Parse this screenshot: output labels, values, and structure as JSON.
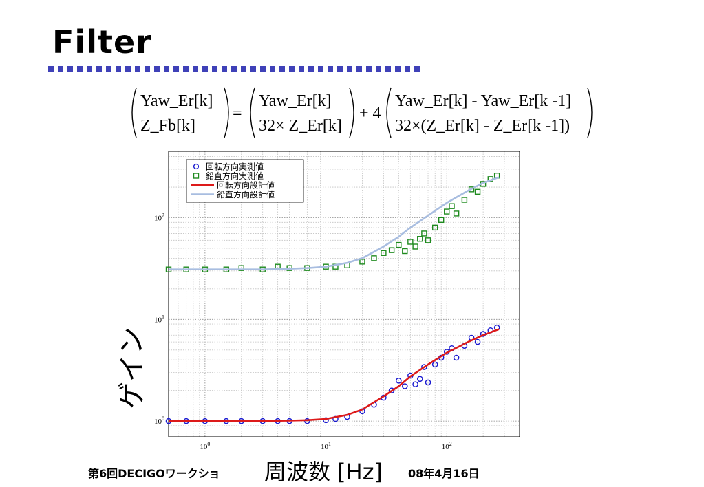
{
  "slide": {
    "title": "Filter",
    "equation": {
      "lhs": [
        "Yaw_Er[k]",
        "Z_Fb[k]"
      ],
      "op_equals": "=",
      "term1": [
        "Yaw_Er[k]",
        "32× Z_Er[k]"
      ],
      "op_plus": "+ 4",
      "term2": [
        "Yaw_Er[k]  - Yaw_Er[k  -1]",
        "32×(Z_Er[k] - Z_Er[k -1])"
      ]
    },
    "footer_left": "第6回DECIGOワークショ",
    "footer_right": "08年4月16日"
  },
  "chart_data": {
    "type": "scatter",
    "title": "",
    "xlabel": "周波数 [Hz]",
    "ylabel": "ゲイン",
    "x_scale": "log",
    "y_scale": "log",
    "xlim": [
      0.5,
      400
    ],
    "ylim": [
      0.7,
      450
    ],
    "grid": true,
    "legend_position": "top-left",
    "x_ticks": [
      {
        "base": "10",
        "exp": "0",
        "value": 1
      },
      {
        "base": "10",
        "exp": "1",
        "value": 10
      },
      {
        "base": "10",
        "exp": "2",
        "value": 100
      }
    ],
    "y_ticks": [
      {
        "base": "10",
        "exp": "0",
        "value": 1
      },
      {
        "base": "10",
        "exp": "1",
        "value": 10
      },
      {
        "base": "10",
        "exp": "2",
        "value": 100
      }
    ],
    "series": [
      {
        "name": "回転方向実測値",
        "kind": "measured",
        "marker": "circle",
        "color": "#1a1ad0",
        "x": [
          0.5,
          0.7,
          1,
          1.5,
          2,
          3,
          4,
          5,
          7,
          10,
          12,
          15,
          20,
          25,
          30,
          35,
          40,
          45,
          50,
          55,
          60,
          65,
          70,
          80,
          90,
          100,
          110,
          120,
          140,
          160,
          180,
          200,
          230,
          260
        ],
        "y": [
          1,
          1,
          1,
          1,
          1,
          1,
          1,
          1,
          1,
          1.02,
          1.05,
          1.1,
          1.25,
          1.45,
          1.7,
          2.0,
          2.5,
          2.2,
          2.8,
          2.3,
          2.6,
          3.4,
          2.4,
          3.6,
          4.2,
          4.8,
          5.2,
          4.2,
          5.5,
          6.6,
          6.0,
          7.2,
          7.8,
          8.3
        ]
      },
      {
        "name": "鉛直方向実測値",
        "kind": "measured",
        "marker": "square",
        "color": "#1e8a1e",
        "x": [
          0.5,
          0.7,
          1,
          1.5,
          2,
          3,
          4,
          5,
          7,
          10,
          12,
          15,
          20,
          25,
          30,
          35,
          40,
          45,
          50,
          55,
          60,
          65,
          70,
          80,
          90,
          100,
          110,
          120,
          140,
          160,
          180,
          200,
          230,
          260
        ],
        "y": [
          31,
          31,
          31,
          31,
          32,
          31,
          33,
          32,
          32,
          33,
          33,
          34,
          37,
          40,
          45,
          48,
          54,
          47,
          58,
          52,
          62,
          70,
          60,
          80,
          95,
          115,
          130,
          110,
          150,
          190,
          180,
          215,
          240,
          260
        ]
      },
      {
        "name": "回転方向設計値",
        "kind": "design",
        "color": "#dd1a1a",
        "x": [
          0.5,
          1,
          2,
          3,
          5,
          7,
          10,
          15,
          20,
          30,
          40,
          50,
          70,
          100,
          150,
          200,
          270
        ],
        "y": [
          1,
          1,
          1,
          1,
          1.01,
          1.02,
          1.05,
          1.15,
          1.3,
          1.75,
          2.2,
          2.75,
          3.6,
          4.7,
          6.0,
          7.0,
          8.0
        ]
      },
      {
        "name": "鉛直方向設計値",
        "kind": "design",
        "color": "#a8bde0",
        "x": [
          0.5,
          1,
          2,
          3,
          5,
          7,
          10,
          15,
          20,
          30,
          40,
          50,
          70,
          100,
          150,
          200,
          270
        ],
        "y": [
          31,
          31,
          31,
          31,
          31.5,
          32,
          33,
          36,
          40,
          52,
          65,
          80,
          105,
          140,
          185,
          220,
          250
        ]
      }
    ]
  }
}
